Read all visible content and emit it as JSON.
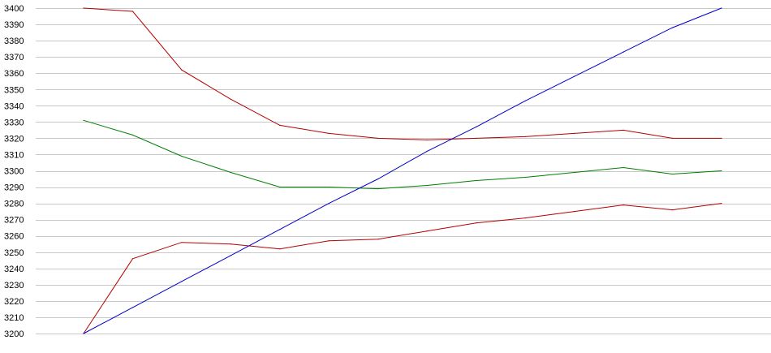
{
  "chart_data": {
    "type": "line",
    "title": "",
    "xlabel": "",
    "ylabel": "",
    "ylim": [
      3200,
      3400
    ],
    "y_ticks": [
      3400,
      3390,
      3380,
      3370,
      3360,
      3350,
      3340,
      3330,
      3320,
      3310,
      3300,
      3290,
      3280,
      3270,
      3260,
      3250,
      3240,
      3230,
      3220,
      3210,
      3200
    ],
    "grid": true,
    "legend": "none",
    "x": [
      1,
      2,
      3,
      4,
      5,
      6,
      7,
      8,
      9,
      10,
      11,
      12,
      13,
      14
    ],
    "series": [
      {
        "color": "#b40000",
        "values": [
          3400,
          3398,
          3362,
          3344,
          3328,
          3323,
          3320,
          3319,
          3320,
          3321,
          3323,
          3325,
          3320,
          3320
        ]
      },
      {
        "color": "#008000",
        "values": [
          3331,
          3322,
          3309,
          3299,
          3290,
          3290,
          3289,
          3291,
          3294,
          3296,
          3299,
          3302,
          3298,
          3300
        ]
      },
      {
        "color": "#b40000",
        "values": [
          3200,
          3246,
          3256,
          3255,
          3252,
          3257,
          3258,
          3263,
          3268,
          3271,
          3275,
          3279,
          3276,
          3280
        ]
      },
      {
        "color": "#0000c8",
        "values": [
          3200,
          3216,
          3232,
          3248,
          3264,
          3280,
          3295,
          3312,
          3327,
          3343,
          3358,
          3373,
          3388,
          3400
        ]
      }
    ]
  }
}
